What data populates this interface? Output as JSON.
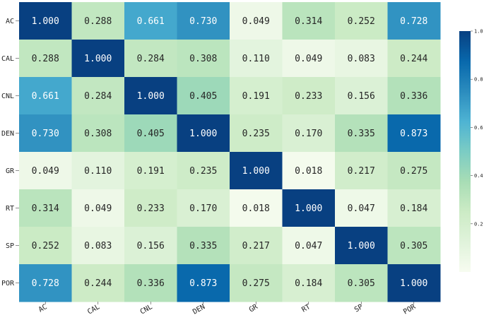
{
  "chart_data": {
    "type": "heatmap",
    "rows": [
      "AC",
      "CAL",
      "CNL",
      "DEN",
      "GR",
      "RT",
      "SP",
      "POR"
    ],
    "columns": [
      "AC",
      "CAL",
      "CNL",
      "DEN",
      "GR",
      "RT",
      "SP",
      "POR"
    ],
    "values": [
      [
        1.0,
        0.288,
        0.661,
        0.73,
        0.049,
        0.314,
        0.252,
        0.728
      ],
      [
        0.288,
        1.0,
        0.284,
        0.308,
        0.11,
        0.049,
        0.083,
        0.244
      ],
      [
        0.661,
        0.284,
        1.0,
        0.405,
        0.191,
        0.233,
        0.156,
        0.336
      ],
      [
        0.73,
        0.308,
        0.405,
        1.0,
        0.235,
        0.17,
        0.335,
        0.873
      ],
      [
        0.049,
        0.11,
        0.191,
        0.235,
        1.0,
        0.018,
        0.217,
        0.275
      ],
      [
        0.314,
        0.049,
        0.233,
        0.17,
        0.018,
        1.0,
        0.047,
        0.184
      ],
      [
        0.252,
        0.083,
        0.156,
        0.335,
        0.217,
        0.047,
        1.0,
        0.305
      ],
      [
        0.728,
        0.244,
        0.336,
        0.873,
        0.275,
        0.184,
        0.305,
        1.0
      ]
    ],
    "value_labels": [
      [
        "1.000",
        "0.288",
        "0.661",
        "0.730",
        "0.049",
        "0.314",
        "0.252",
        "0.728"
      ],
      [
        "0.288",
        "1.000",
        "0.284",
        "0.308",
        "0.110",
        "0.049",
        "0.083",
        "0.244"
      ],
      [
        "0.661",
        "0.284",
        "1.000",
        "0.405",
        "0.191",
        "0.233",
        "0.156",
        "0.336"
      ],
      [
        "0.730",
        "0.308",
        "0.405",
        "1.000",
        "0.235",
        "0.170",
        "0.335",
        "0.873"
      ],
      [
        "0.049",
        "0.110",
        "0.191",
        "0.235",
        "1.000",
        "0.018",
        "0.217",
        "0.275"
      ],
      [
        "0.314",
        "0.049",
        "0.233",
        "0.170",
        "0.018",
        "1.000",
        "0.047",
        "0.184"
      ],
      [
        "0.252",
        "0.083",
        "0.156",
        "0.335",
        "0.217",
        "0.047",
        "1.000",
        "0.305"
      ],
      [
        "0.728",
        "0.244",
        "0.336",
        "0.873",
        "0.275",
        "0.184",
        "0.305",
        "1.000"
      ]
    ],
    "colormap": "GnBu",
    "colormap_stops": [
      "#f7fcf0",
      "#e0f3db",
      "#ccebc5",
      "#a8ddb5",
      "#7bccc4",
      "#4eb3d3",
      "#2b8cbe",
      "#0868ac",
      "#084081"
    ],
    "vmin": 0.0,
    "vmax": 1.0,
    "colorbar": {
      "ticks": [
        0.2,
        0.4,
        0.6,
        0.8,
        1.0
      ],
      "tick_labels": [
        "0.2",
        "0.4",
        "0.6",
        "0.8",
        "1.0"
      ],
      "position": "right"
    },
    "title": "",
    "xlabel": "",
    "ylabel": ""
  }
}
